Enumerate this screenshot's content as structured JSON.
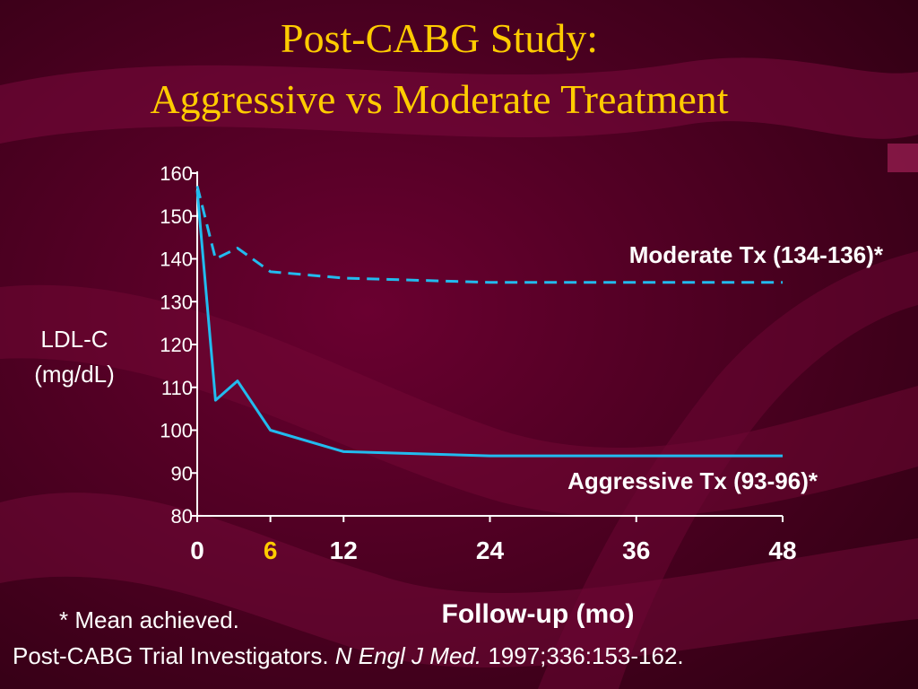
{
  "slide": {
    "title_line1": "Post-CABG Study:",
    "title_line2": "Aggressive vs Moderate Treatment",
    "footnote": "* Mean achieved.",
    "citation": {
      "authors": "Post-CABG Trial Investigators.",
      "journal": "N Engl J Med.",
      "ref": "1997;336:153-162."
    }
  },
  "colors": {
    "title": "#ffcc00",
    "text": "#ffffff",
    "series": "#22bbee",
    "highlight_tick": "#ffcc00"
  },
  "chart_data": {
    "type": "line",
    "title": "",
    "ylabel_line1": "LDL-C",
    "ylabel_line2": "(mg/dL)",
    "xlabel": "Follow-up (mo)",
    "ylim": [
      80,
      160
    ],
    "xlim": [
      0,
      48
    ],
    "yticks": [
      80,
      90,
      100,
      110,
      120,
      130,
      140,
      150,
      160
    ],
    "xticks": [
      0,
      6,
      12,
      24,
      36,
      48
    ],
    "highlighted_xtick": 6,
    "grid": false,
    "series": [
      {
        "name": "Moderate Tx (134-136)*",
        "style": "dashed",
        "x": [
          0,
          1.5,
          3.3,
          6,
          12,
          24,
          36,
          48
        ],
        "y": [
          157,
          140,
          142.5,
          137,
          135.5,
          134.5,
          134.5,
          134.5
        ]
      },
      {
        "name": "Aggressive Tx (93-96)*",
        "style": "solid",
        "x": [
          0,
          1.5,
          3.3,
          6,
          12,
          24,
          36,
          48
        ],
        "y": [
          156,
          107,
          111.5,
          100,
          95,
          94,
          94,
          94
        ]
      }
    ]
  }
}
